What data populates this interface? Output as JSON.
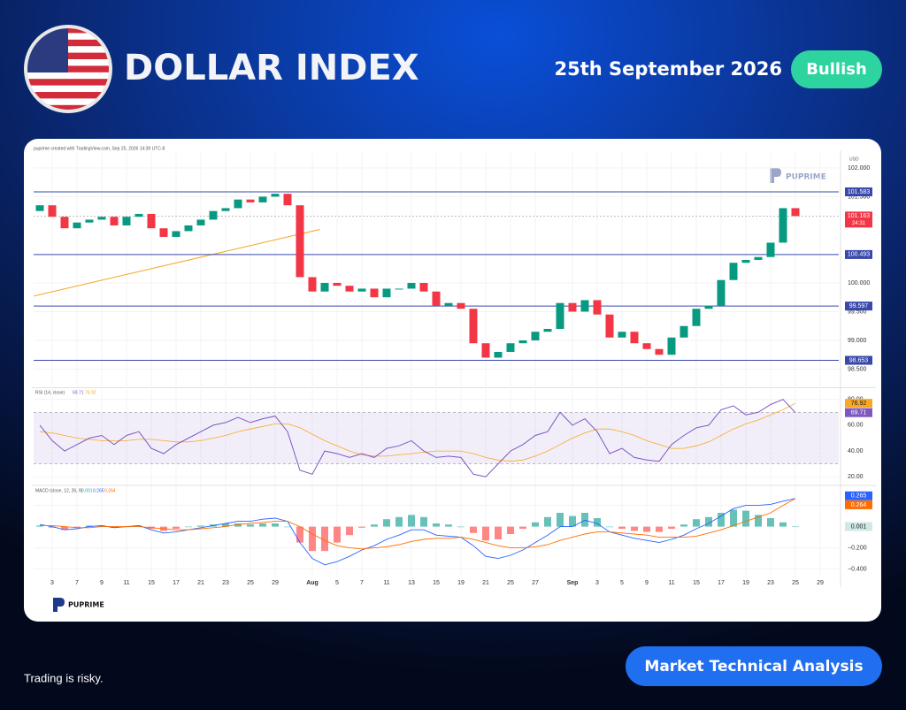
{
  "header": {
    "title": "DOLLAR INDEX",
    "date": "25th September 2026",
    "badge": "Bullish"
  },
  "footer": {
    "disclaimer": "Trading is risky.",
    "button": "Market Technical Analysis"
  },
  "chart_data": [
    {
      "type": "candlestick",
      "attribution": "puprime created with TradingView.com, Sep 25, 2026 14:39 UTC-8",
      "currency": "USD",
      "watermark": "PUPRIME",
      "open": [
        101.25,
        101.35,
        101.15,
        100.95,
        101.05,
        101.1,
        101.15,
        101.0,
        101.15,
        101.2,
        100.95,
        100.8,
        100.9,
        101.0,
        101.1,
        101.25,
        101.3,
        101.45,
        101.4,
        101.5,
        101.55,
        101.35,
        100.1,
        99.85,
        100.0,
        99.95,
        99.85,
        99.9,
        99.75,
        99.9,
        99.9,
        100.0,
        99.85,
        99.6,
        99.65,
        99.55,
        98.95,
        98.7,
        98.8,
        98.95,
        99.0,
        99.15,
        99.2,
        99.65,
        99.5,
        99.7,
        99.45,
        99.05,
        99.15,
        98.95,
        98.85,
        98.75,
        99.05,
        99.25,
        99.55,
        99.6,
        100.05,
        100.35,
        100.4,
        100.45,
        100.7,
        101.3
      ],
      "close": [
        101.35,
        101.15,
        100.95,
        101.05,
        101.1,
        101.15,
        101.0,
        101.15,
        101.2,
        100.95,
        100.8,
        100.9,
        101.0,
        101.1,
        101.25,
        101.3,
        101.45,
        101.4,
        101.5,
        101.55,
        101.35,
        100.1,
        99.85,
        100.0,
        99.95,
        99.85,
        99.9,
        99.75,
        99.9,
        99.9,
        100.0,
        99.85,
        99.6,
        99.65,
        99.55,
        98.95,
        98.7,
        98.8,
        98.95,
        99.0,
        99.15,
        99.2,
        99.65,
        99.5,
        99.7,
        99.45,
        99.05,
        99.15,
        98.95,
        98.85,
        98.75,
        99.05,
        99.25,
        99.55,
        99.6,
        100.05,
        100.35,
        100.4,
        100.45,
        100.7,
        101.3,
        101.163
      ],
      "up_color": "#089981",
      "down_color": "#f23645",
      "ylim": [
        98.2,
        102.26
      ],
      "yticks": [
        {
          "value": 102,
          "label": "102.000"
        },
        {
          "value": 101.5,
          "label": "101.500"
        },
        {
          "value": 100,
          "label": "100.000"
        },
        {
          "value": 99.5,
          "label": "99.500"
        },
        {
          "value": 99,
          "label": "99.000"
        },
        {
          "value": 98.5,
          "label": "98.500"
        }
      ],
      "levels": [
        101.583,
        100.493,
        99.597,
        98.653
      ],
      "level_color": "#3949ab",
      "last": 101.163,
      "countdown": "24:31",
      "trendline": {
        "x": [
          0,
          23.1
        ],
        "y": [
          99.77,
          100.93
        ],
        "color": "#f5a623"
      },
      "xlim": [
        0,
        65
      ],
      "xticks": [
        {
          "value": 1.5,
          "label": "3"
        },
        {
          "value": 3.5,
          "label": "7"
        },
        {
          "value": 5.5,
          "label": "9"
        },
        {
          "value": 7.5,
          "label": "11"
        },
        {
          "value": 9.5,
          "label": "15"
        },
        {
          "value": 11.5,
          "label": "17"
        },
        {
          "value": 13.5,
          "label": "21"
        },
        {
          "value": 15.5,
          "label": "23"
        },
        {
          "value": 17.5,
          "label": "25"
        },
        {
          "value": 19.5,
          "label": "29"
        },
        {
          "value": 22.5,
          "label": "Aug"
        },
        {
          "value": 24.5,
          "label": "5"
        },
        {
          "value": 26.5,
          "label": "7"
        },
        {
          "value": 28.5,
          "label": "11"
        },
        {
          "value": 30.5,
          "label": "13"
        },
        {
          "value": 32.5,
          "label": "15"
        },
        {
          "value": 34.5,
          "label": "19"
        },
        {
          "value": 36.5,
          "label": "21"
        },
        {
          "value": 38.5,
          "label": "25"
        },
        {
          "value": 40.5,
          "label": "27"
        },
        {
          "value": 43.5,
          "label": "Sep"
        },
        {
          "value": 45.5,
          "label": "3"
        },
        {
          "value": 47.5,
          "label": "5"
        },
        {
          "value": 49.5,
          "label": "9"
        },
        {
          "value": 51.5,
          "label": "11"
        },
        {
          "value": 53.5,
          "label": "15"
        },
        {
          "value": 55.5,
          "label": "17"
        },
        {
          "value": 57.5,
          "label": "19"
        },
        {
          "value": 59.5,
          "label": "23"
        },
        {
          "value": 61.5,
          "label": "25"
        },
        {
          "value": 63.5,
          "label": "29"
        }
      ]
    },
    {
      "type": "rsi",
      "title": "RSI (14, close)",
      "series": [
        {
          "color": "#7e57c2",
          "last": 69.71,
          "values": [
            60,
            48,
            40,
            45,
            50,
            52,
            45,
            52,
            55,
            42,
            38,
            45,
            50,
            55,
            60,
            62,
            66,
            62,
            65,
            67,
            55,
            25,
            22,
            40,
            38,
            35,
            38,
            35,
            42,
            44,
            48,
            40,
            35,
            36,
            35,
            22,
            20,
            30,
            40,
            45,
            52,
            55,
            70,
            60,
            65,
            55,
            38,
            42,
            35,
            33,
            32,
            45,
            52,
            58,
            60,
            72,
            75,
            68,
            70,
            76,
            80,
            69.71
          ]
        },
        {
          "color": "#f9a825",
          "last": 76.92,
          "values": [
            55,
            54,
            52,
            50,
            49,
            48,
            48,
            48,
            49,
            49,
            48,
            47,
            47,
            48,
            50,
            52,
            55,
            57,
            59,
            61,
            61,
            58,
            53,
            48,
            44,
            40,
            37,
            36,
            36,
            37,
            38,
            39,
            40,
            40,
            40,
            38,
            35,
            33,
            32,
            33,
            36,
            40,
            45,
            50,
            54,
            57,
            57,
            55,
            52,
            48,
            45,
            42,
            42,
            44,
            47,
            52,
            57,
            61,
            64,
            68,
            72,
            76.92
          ]
        }
      ],
      "band": [
        30,
        70
      ],
      "ylim": [
        14,
        88
      ],
      "yticks": [
        {
          "value": 80,
          "label": "80.00"
        },
        {
          "value": 60,
          "label": "60.00"
        },
        {
          "value": 40,
          "label": "40.00"
        },
        {
          "value": 20,
          "label": "20.00"
        }
      ]
    },
    {
      "type": "macd",
      "title": "MACD (close, 12, 26, 9)",
      "histogram": {
        "up_color": "#26a69a",
        "down_color": "#ff5252",
        "last": 0.001,
        "values": [
          0.01,
          -0.01,
          -0.03,
          -0.01,
          0.01,
          0.01,
          -0.01,
          0,
          0.01,
          -0.02,
          -0.04,
          -0.02,
          0,
          0.01,
          0.02,
          0.03,
          0.03,
          0.02,
          0.03,
          0.03,
          0,
          -0.15,
          -0.23,
          -0.23,
          -0.15,
          -0.08,
          -0.01,
          0.02,
          0.07,
          0.09,
          0.11,
          0.09,
          0.03,
          0.02,
          0,
          -0.06,
          -0.13,
          -0.12,
          -0.07,
          -0.02,
          0.04,
          0.09,
          0.13,
          0.1,
          0.13,
          0.08,
          0,
          -0.02,
          -0.04,
          -0.05,
          -0.05,
          -0.02,
          0.02,
          0.07,
          0.09,
          0.13,
          0.16,
          0.15,
          0.11,
          0.08,
          0.04,
          0.001
        ]
      },
      "macd": {
        "color": "#2962ff",
        "last": 0.265,
        "values": [
          0.02,
          0,
          -0.03,
          -0.02,
          0,
          0.01,
          -0.01,
          0,
          0.01,
          -0.03,
          -0.06,
          -0.05,
          -0.03,
          -0.01,
          0.01,
          0.03,
          0.05,
          0.05,
          0.07,
          0.08,
          0.05,
          -0.15,
          -0.3,
          -0.36,
          -0.33,
          -0.28,
          -0.22,
          -0.18,
          -0.12,
          -0.08,
          -0.03,
          -0.03,
          -0.08,
          -0.09,
          -0.1,
          -0.18,
          -0.28,
          -0.3,
          -0.27,
          -0.22,
          -0.15,
          -0.08,
          0,
          0,
          0.06,
          0.03,
          -0.05,
          -0.08,
          -0.11,
          -0.13,
          -0.15,
          -0.12,
          -0.08,
          -0.02,
          0.03,
          0.1,
          0.17,
          0.2,
          0.2,
          0.21,
          0.24,
          0.265
        ]
      },
      "signal": {
        "color": "#ff6d00",
        "last": 0.264,
        "values": [
          0.01,
          0.01,
          0,
          -0.01,
          -0.01,
          0,
          0,
          0,
          0,
          -0.01,
          -0.02,
          -0.03,
          -0.03,
          -0.02,
          -0.01,
          0,
          0.02,
          0.03,
          0.04,
          0.05,
          0.05,
          0,
          -0.07,
          -0.13,
          -0.18,
          -0.2,
          -0.21,
          -0.2,
          -0.19,
          -0.17,
          -0.14,
          -0.12,
          -0.11,
          -0.11,
          -0.1,
          -0.12,
          -0.15,
          -0.18,
          -0.2,
          -0.2,
          -0.19,
          -0.17,
          -0.13,
          -0.1,
          -0.07,
          -0.05,
          -0.05,
          -0.06,
          -0.07,
          -0.08,
          -0.1,
          -0.1,
          -0.1,
          -0.09,
          -0.06,
          -0.03,
          0.01,
          0.05,
          0.09,
          0.13,
          0.2,
          0.264
        ]
      },
      "ylim": [
        -0.47,
        0.38
      ],
      "yticks": [
        {
          "value": 0.2,
          "label": "0.200"
        },
        {
          "value": -0.2,
          "label": "−0.200"
        },
        {
          "value": -0.4,
          "label": "−0.400"
        }
      ]
    }
  ]
}
